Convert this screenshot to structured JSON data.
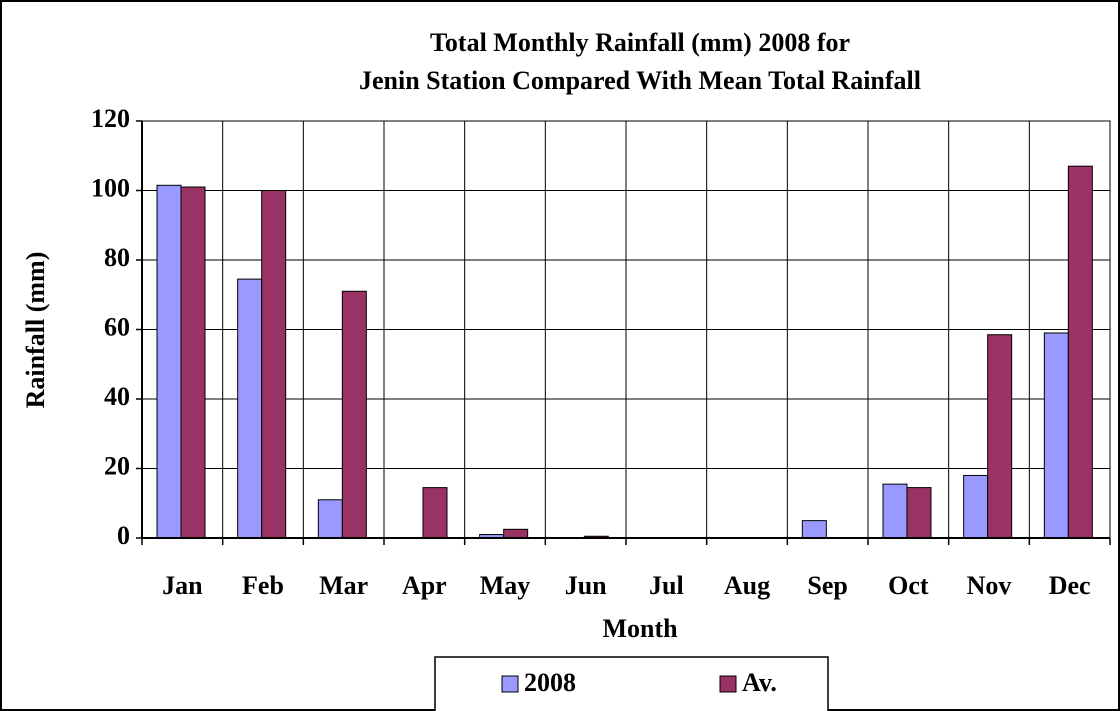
{
  "chart_data": {
    "type": "bar",
    "title": [
      "Total Monthly Rainfall (mm) 2008 for",
      "Jenin Station Compared With Mean Total Rainfall"
    ],
    "x_label": "Month",
    "y_label": "Rainfall (mm)",
    "categories": [
      "Jan",
      "Feb",
      "Mar",
      "Apr",
      "May",
      "Jun",
      "Jul",
      "Aug",
      "Sep",
      "Oct",
      "Nov",
      "Dec"
    ],
    "series": [
      {
        "name": "2008",
        "color": "#9999ff",
        "values": [
          101.5,
          74.5,
          11,
          0,
          1,
          0,
          0,
          0,
          5,
          15.5,
          18,
          59
        ]
      },
      {
        "name": "Av.",
        "color": "#993366",
        "values": [
          101,
          100,
          71,
          14.5,
          2.5,
          0.5,
          0,
          0,
          0,
          14.5,
          58.5,
          107
        ]
      }
    ],
    "ylim": [
      0,
      120
    ],
    "yticks": [
      0,
      20,
      40,
      60,
      80,
      100,
      120
    ],
    "grid": true,
    "legend": "bottom"
  }
}
